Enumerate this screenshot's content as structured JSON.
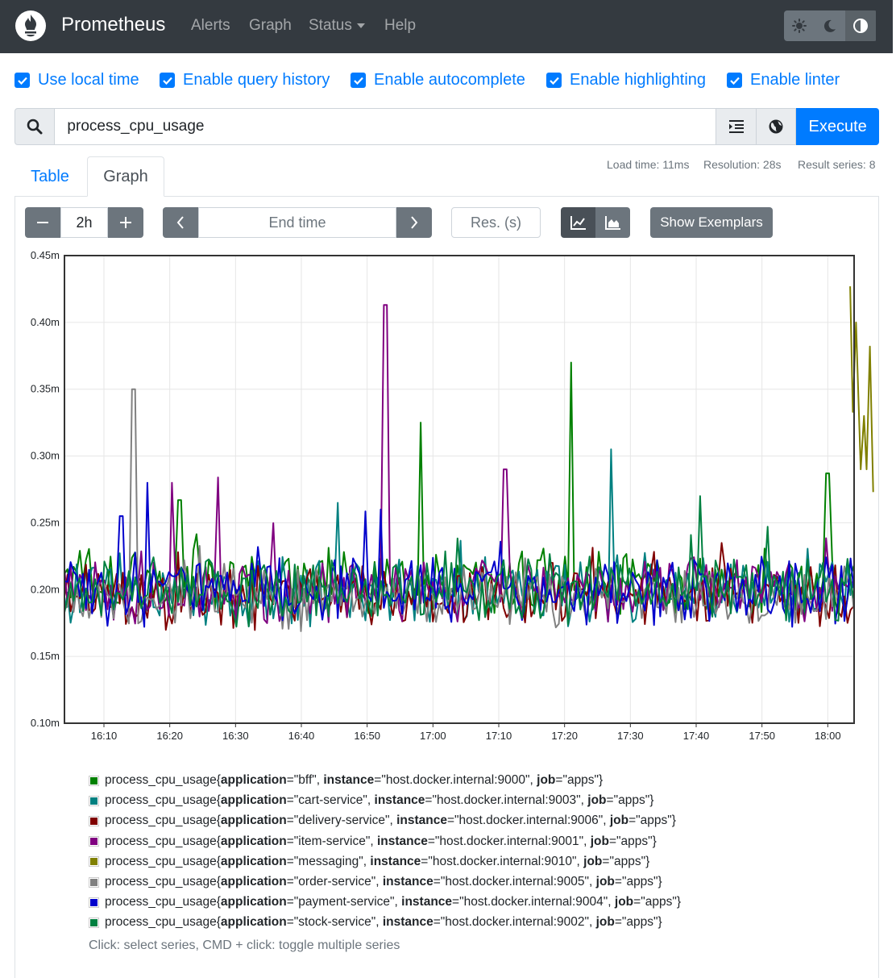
{
  "navbar": {
    "brand": "Prometheus",
    "links": [
      "Alerts",
      "Graph",
      "Status",
      "Help"
    ]
  },
  "options": [
    {
      "label": "Use local time",
      "checked": true
    },
    {
      "label": "Enable query history",
      "checked": true
    },
    {
      "label": "Enable autocomplete",
      "checked": true
    },
    {
      "label": "Enable highlighting",
      "checked": true
    },
    {
      "label": "Enable linter",
      "checked": true
    }
  ],
  "query": {
    "value": "process_cpu_usage",
    "execute_label": "Execute"
  },
  "stats": {
    "load_time": "Load time: 11ms",
    "resolution": "Resolution: 28s",
    "result_series": "Result series: 8"
  },
  "tabs": [
    "Table",
    "Graph"
  ],
  "controls": {
    "range": "2h",
    "end_time_placeholder": "End time",
    "resolution_placeholder": "Res. (s)",
    "exemplars_label": "Show Exemplars"
  },
  "chart_data": {
    "type": "line",
    "x_ticks": [
      "16:10",
      "16:20",
      "16:30",
      "16:40",
      "16:50",
      "17:00",
      "17:10",
      "17:20",
      "17:30",
      "17:40",
      "17:50",
      "18:00"
    ],
    "y_ticks": [
      "0.10m",
      "0.15m",
      "0.20m",
      "0.25m",
      "0.30m",
      "0.35m",
      "0.40m",
      "0.45m"
    ],
    "xlim": [
      "16:04",
      "18:04"
    ],
    "ylim": [
      0.1,
      0.45
    ],
    "grid": true,
    "series": [
      {
        "name": "bff",
        "color": "#008000",
        "base": 0.205,
        "noise": 0.02,
        "spikes": [
          [
            17.5,
            0.267
          ],
          [
            54,
            0.325
          ],
          [
            76.9,
            0.37
          ],
          [
            116,
            0.287
          ]
        ]
      },
      {
        "name": "cart-service",
        "color": "#008080",
        "base": 0.2,
        "noise": 0.02,
        "spikes": [
          [
            41.7,
            0.265
          ],
          [
            83.2,
            0.305
          ]
        ]
      },
      {
        "name": "delivery-service",
        "color": "#800000",
        "base": 0.195,
        "noise": 0.018,
        "spikes": [
          [
            74,
            0.22
          ]
        ]
      },
      {
        "name": "item-service",
        "color": "#800080",
        "base": 0.2,
        "noise": 0.019,
        "spikes": [
          [
            16.5,
            0.28
          ],
          [
            23.2,
            0.284
          ],
          [
            48.8,
            0.413
          ],
          [
            67,
            0.29
          ]
        ]
      },
      {
        "name": "messaging",
        "color": "#808000",
        "points": [
          [
            119.4,
            0.427
          ],
          [
            119.8,
            0.333
          ],
          [
            120.3,
            0.4
          ],
          [
            121.0,
            0.29
          ],
          [
            121.5,
            0.33
          ],
          [
            121.9,
            0.29
          ],
          [
            122.4,
            0.382
          ],
          [
            122.9,
            0.273
          ]
        ]
      },
      {
        "name": "order-service",
        "color": "#808080",
        "base": 0.195,
        "noise": 0.018,
        "spikes": [
          [
            10.5,
            0.35
          ]
        ]
      },
      {
        "name": "payment-service",
        "color": "#0000cc",
        "base": 0.2,
        "noise": 0.02,
        "spikes": [
          [
            8.6,
            0.255
          ],
          [
            12.7,
            0.28
          ],
          [
            48,
            0.26
          ]
        ]
      },
      {
        "name": "stock-service",
        "color": "#008040",
        "base": 0.2,
        "noise": 0.02,
        "spikes": [
          [
            96.5,
            0.27
          ]
        ]
      }
    ]
  },
  "legend": [
    {
      "metric": "process_cpu_usage{",
      "application": "\"bff\"",
      "instance": "\"host.docker.internal:9000\"",
      "job": "\"apps\"}",
      "color": "#008000"
    },
    {
      "metric": "process_cpu_usage{",
      "application": "\"cart-service\"",
      "instance": "\"host.docker.internal:9003\"",
      "job": "\"apps\"}",
      "color": "#008080"
    },
    {
      "metric": "process_cpu_usage{",
      "application": "\"delivery-service\"",
      "instance": "\"host.docker.internal:9006\"",
      "job": "\"apps\"}",
      "color": "#800000"
    },
    {
      "metric": "process_cpu_usage{",
      "application": "\"item-service\"",
      "instance": "\"host.docker.internal:9001\"",
      "job": "\"apps\"}",
      "color": "#800080"
    },
    {
      "metric": "process_cpu_usage{",
      "application": "\"messaging\"",
      "instance": "\"host.docker.internal:9010\"",
      "job": "\"apps\"}",
      "color": "#808000"
    },
    {
      "metric": "process_cpu_usage{",
      "application": "\"order-service\"",
      "instance": "\"host.docker.internal:9005\"",
      "job": "\"apps\"}",
      "color": "#808080"
    },
    {
      "metric": "process_cpu_usage{",
      "application": "\"payment-service\"",
      "instance": "\"host.docker.internal:9004\"",
      "job": "\"apps\"}",
      "color": "#0000cc"
    },
    {
      "metric": "process_cpu_usage{",
      "application": "\"stock-service\"",
      "instance": "\"host.docker.internal:9002\"",
      "job": "\"apps\"}",
      "color": "#008040"
    }
  ],
  "legend_keys": {
    "application": "application",
    "instance": "instance",
    "job": "job"
  },
  "hint": "Click: select series, CMD + click: toggle multiple series"
}
